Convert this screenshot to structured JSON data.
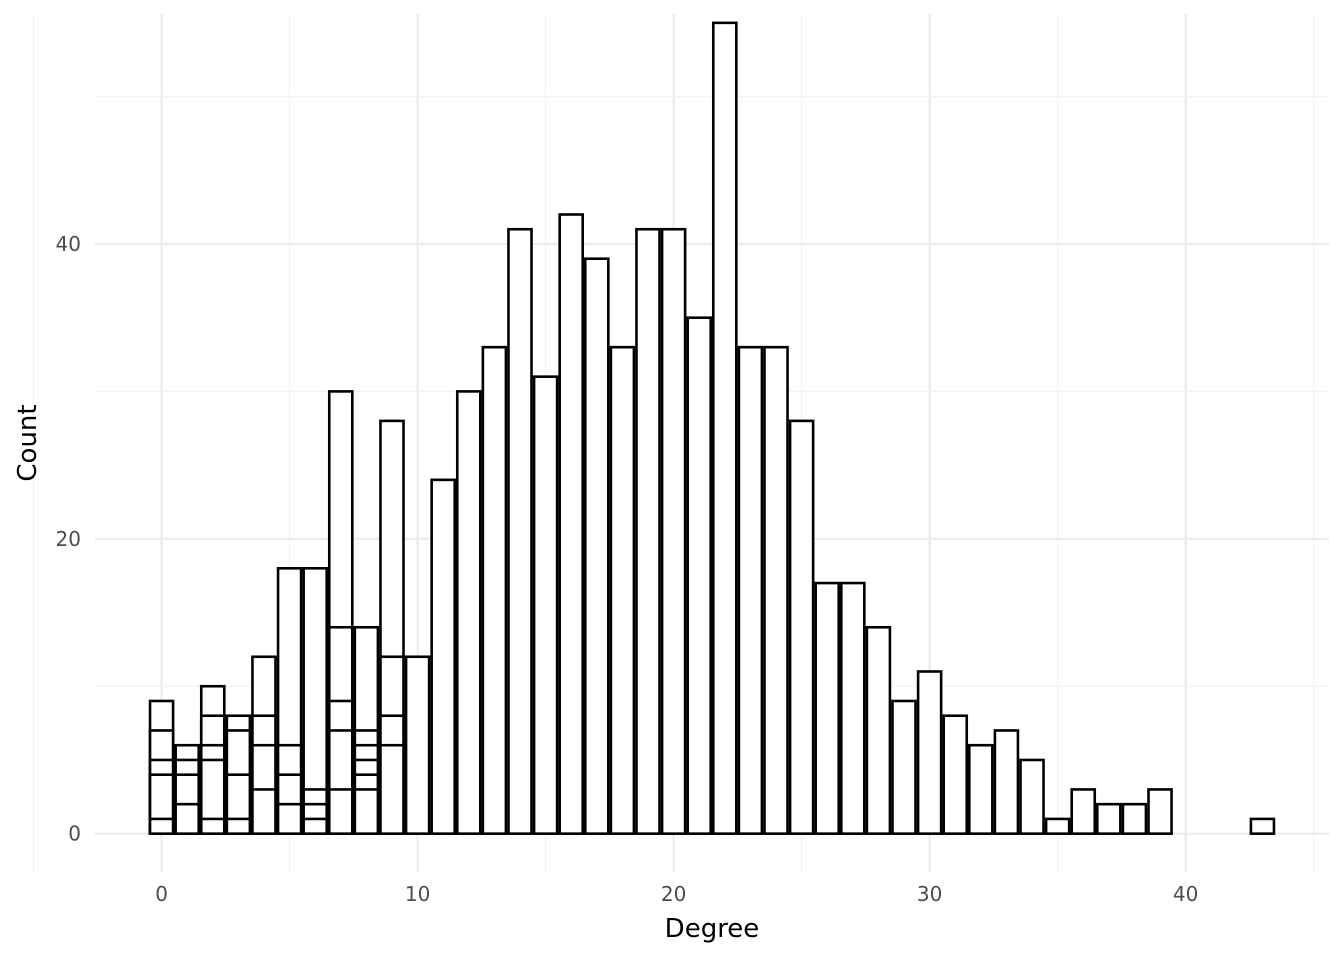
{
  "chart_data": {
    "type": "bar",
    "subtype": "overlapping-histogram-outlines",
    "title": "",
    "xlabel": "Degree",
    "ylabel": "Count",
    "xlim": [
      -2.6,
      45.6
    ],
    "ylim": [
      -2.6,
      55.6
    ],
    "x_ticks": [
      0,
      10,
      20,
      30,
      40
    ],
    "y_ticks": [
      0,
      20,
      40
    ],
    "x_tick_labels": [
      "0",
      "10",
      "20",
      "30",
      "40"
    ],
    "y_tick_labels": [
      "0",
      "20",
      "40"
    ],
    "grid": true,
    "legend": "none",
    "bar_width": 0.9,
    "fill_color": "#ffffff",
    "outline_color": "#000000",
    "series": [
      {
        "x": [
          0,
          1,
          2,
          3,
          4,
          5,
          6,
          7,
          8,
          9,
          10,
          11,
          12,
          13,
          14,
          15,
          16,
          17,
          18,
          19,
          20,
          21,
          22,
          23,
          24,
          25,
          26,
          27,
          28,
          29,
          30,
          31,
          32,
          33,
          34,
          35,
          36,
          37,
          38,
          39,
          43
        ],
        "values": [
          9,
          6,
          10,
          8,
          12,
          18,
          18,
          30,
          14,
          28,
          12,
          24,
          30,
          33,
          41,
          31,
          42,
          39,
          33,
          41,
          41,
          35,
          55,
          33,
          33,
          28,
          17,
          17,
          14,
          9,
          11,
          8,
          6,
          7,
          5,
          1,
          3,
          2,
          2,
          3,
          1
        ]
      },
      {
        "x": [
          0,
          1,
          2,
          3,
          4,
          5,
          6,
          7,
          8,
          9
        ],
        "values": [
          7,
          5,
          8,
          7,
          8,
          6,
          3,
          14,
          7,
          12
        ]
      },
      {
        "x": [
          0,
          1,
          2,
          3,
          4,
          5,
          6,
          7,
          8,
          9
        ],
        "values": [
          5,
          4,
          6,
          4,
          6,
          4,
          2,
          9,
          6,
          8
        ]
      },
      {
        "x": [
          0,
          1,
          2,
          3,
          4,
          5,
          7,
          8,
          9
        ],
        "values": [
          4,
          2,
          5,
          1,
          3,
          2,
          7,
          5,
          6
        ]
      },
      {
        "x": [
          0,
          2,
          6,
          7,
          8
        ],
        "values": [
          1,
          1,
          1,
          3,
          4
        ]
      },
      {
        "x": [
          8
        ],
        "values": [
          3
        ]
      }
    ]
  }
}
